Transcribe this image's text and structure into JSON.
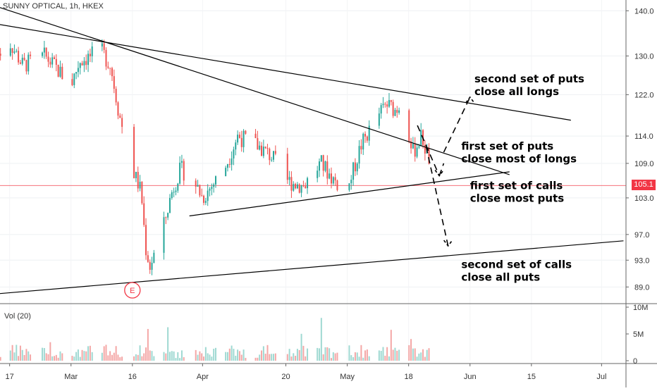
{
  "chart_data": {
    "type": "candlestick",
    "title": "SUNNY OPTICAL, 1h, HKEX",
    "volume_label": "Vol (20)",
    "price_axis": {
      "ticks": [
        "140.0",
        "130.0",
        "122.0",
        "114.0",
        "109.0",
        "103.0",
        "97.0",
        "93.0",
        "89.0"
      ],
      "scale": "log",
      "range": [
        87,
        142
      ]
    },
    "volume_axis": {
      "ticks": [
        "10M",
        "5M",
        "0"
      ]
    },
    "x_ticks": [
      "17",
      "Mar",
      "16",
      "Apr",
      "20",
      "May",
      "18",
      "Jun",
      "15",
      "Jul"
    ],
    "last_price": "105.1",
    "event_marker": "E",
    "colors": {
      "up": "#26a69a",
      "down": "#ef5350",
      "line": "#000000",
      "price_line": "#f23645"
    },
    "trendlines": [
      {
        "name": "upper-resistance",
        "from": {
          "x": "Feb 14",
          "y": 137
        },
        "to": {
          "x": "Jun 24",
          "y": 117
        }
      },
      {
        "name": "descending-line",
        "from": {
          "x": "Feb 14",
          "y": 141
        },
        "to": {
          "x": "Jun 10",
          "y": 107
        }
      },
      {
        "name": "rising-support",
        "from": {
          "x": "Mar 29",
          "y": 100
        },
        "to": {
          "x": "Jun 10",
          "y": 107.5
        }
      },
      {
        "name": "long-support",
        "from": {
          "x": "Feb 14",
          "y": 88
        },
        "to": {
          "x": "Jul 6",
          "y": 96
        }
      }
    ],
    "annotations": [
      {
        "lines": [
          "second set of puts",
          "close all longs"
        ]
      },
      {
        "lines": [
          "first set of puts",
          "close most of longs"
        ]
      },
      {
        "lines": [
          "first set of calls",
          "close most puts"
        ]
      },
      {
        "lines": [
          "second set of  calls",
          "close all puts"
        ]
      }
    ]
  }
}
